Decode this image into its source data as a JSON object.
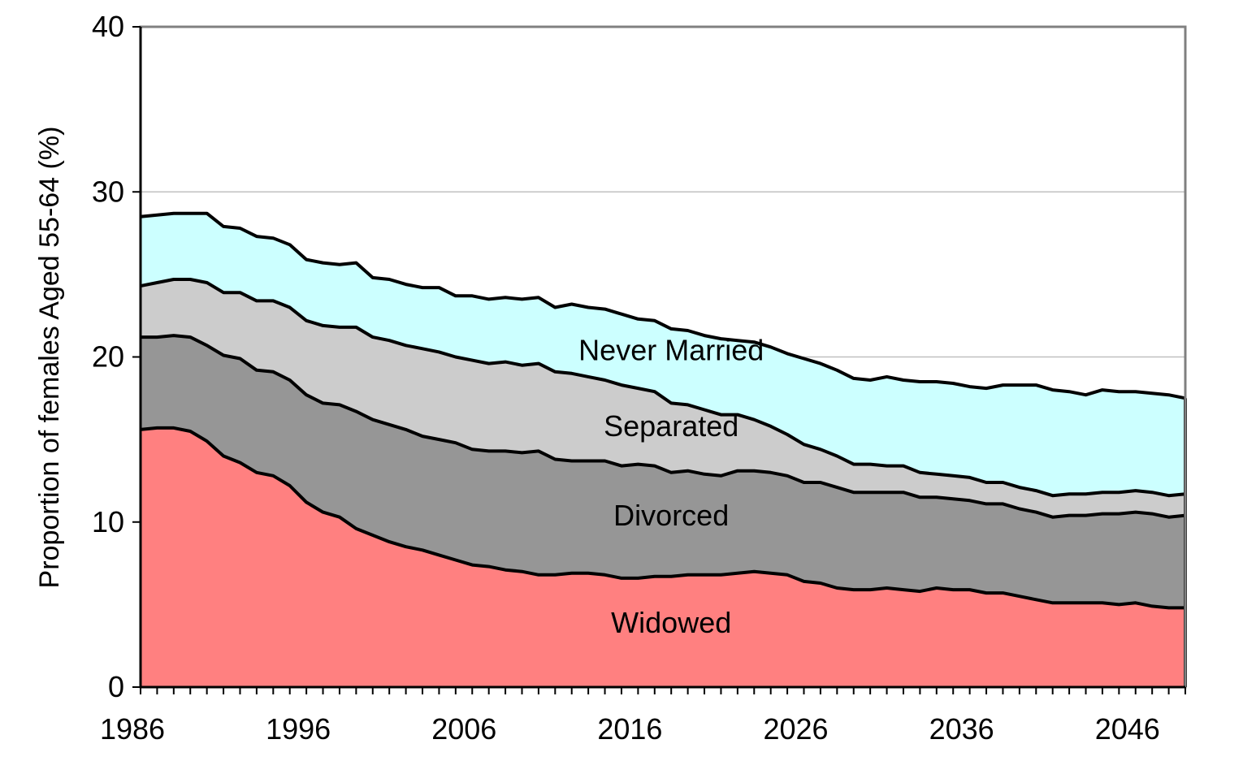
{
  "chart_data": {
    "type": "area",
    "stacked": true,
    "title": "",
    "xlabel": "",
    "ylabel": "Proportion of females Aged 55-64 (%)",
    "xlim": [
      1986,
      2049
    ],
    "ylim": [
      0,
      40
    ],
    "x_ticks": [
      1986,
      1996,
      2006,
      2016,
      2026,
      2036,
      2046
    ],
    "y_ticks": [
      0,
      10,
      20,
      30,
      40
    ],
    "grid": "horizontal",
    "legend": "none (labels placed inside areas)",
    "series": [
      {
        "name": "Widowed",
        "color": "#ff8080",
        "label_at": [
          2018,
          3.3
        ],
        "values": [
          [
            1986,
            15.6
          ],
          [
            1987,
            15.7
          ],
          [
            1988,
            15.7
          ],
          [
            1989,
            15.5
          ],
          [
            1990,
            14.9
          ],
          [
            1991,
            14.0
          ],
          [
            1992,
            13.6
          ],
          [
            1993,
            13.0
          ],
          [
            1994,
            12.8
          ],
          [
            1995,
            12.2
          ],
          [
            1996,
            11.2
          ],
          [
            1997,
            10.6
          ],
          [
            1998,
            10.3
          ],
          [
            1999,
            9.6
          ],
          [
            2000,
            9.2
          ],
          [
            2001,
            8.8
          ],
          [
            2002,
            8.5
          ],
          [
            2003,
            8.3
          ],
          [
            2004,
            8.0
          ],
          [
            2005,
            7.7
          ],
          [
            2006,
            7.4
          ],
          [
            2007,
            7.3
          ],
          [
            2008,
            7.1
          ],
          [
            2009,
            7.0
          ],
          [
            2010,
            6.8
          ],
          [
            2011,
            6.8
          ],
          [
            2012,
            6.9
          ],
          [
            2013,
            6.9
          ],
          [
            2014,
            6.8
          ],
          [
            2015,
            6.6
          ],
          [
            2016,
            6.6
          ],
          [
            2017,
            6.7
          ],
          [
            2018,
            6.7
          ],
          [
            2019,
            6.8
          ],
          [
            2020,
            6.8
          ],
          [
            2021,
            6.8
          ],
          [
            2022,
            6.9
          ],
          [
            2023,
            7.0
          ],
          [
            2024,
            6.9
          ],
          [
            2025,
            6.8
          ],
          [
            2026,
            6.4
          ],
          [
            2027,
            6.3
          ],
          [
            2028,
            6.0
          ],
          [
            2029,
            5.9
          ],
          [
            2030,
            5.9
          ],
          [
            2031,
            6.0
          ],
          [
            2032,
            5.9
          ],
          [
            2033,
            5.8
          ],
          [
            2034,
            6.0
          ],
          [
            2035,
            5.9
          ],
          [
            2036,
            5.9
          ],
          [
            2037,
            5.7
          ],
          [
            2038,
            5.7
          ],
          [
            2039,
            5.5
          ],
          [
            2040,
            5.3
          ],
          [
            2041,
            5.1
          ],
          [
            2042,
            5.1
          ],
          [
            2043,
            5.1
          ],
          [
            2044,
            5.1
          ],
          [
            2045,
            5.0
          ],
          [
            2046,
            5.1
          ],
          [
            2047,
            4.9
          ],
          [
            2048,
            4.8
          ],
          [
            2049,
            4.8
          ]
        ]
      },
      {
        "name": "Divorced",
        "color": "#969696",
        "label_at": [
          2018,
          9.8
        ],
        "values": [
          [
            1986,
            21.2
          ],
          [
            1987,
            21.2
          ],
          [
            1988,
            21.3
          ],
          [
            1989,
            21.2
          ],
          [
            1990,
            20.7
          ],
          [
            1991,
            20.1
          ],
          [
            1992,
            19.9
          ],
          [
            1993,
            19.2
          ],
          [
            1994,
            19.1
          ],
          [
            1995,
            18.6
          ],
          [
            1996,
            17.7
          ],
          [
            1997,
            17.2
          ],
          [
            1998,
            17.1
          ],
          [
            1999,
            16.7
          ],
          [
            2000,
            16.2
          ],
          [
            2001,
            15.9
          ],
          [
            2002,
            15.6
          ],
          [
            2003,
            15.2
          ],
          [
            2004,
            15.0
          ],
          [
            2005,
            14.8
          ],
          [
            2006,
            14.4
          ],
          [
            2007,
            14.3
          ],
          [
            2008,
            14.3
          ],
          [
            2009,
            14.2
          ],
          [
            2010,
            14.3
          ],
          [
            2011,
            13.8
          ],
          [
            2012,
            13.7
          ],
          [
            2013,
            13.7
          ],
          [
            2014,
            13.7
          ],
          [
            2015,
            13.4
          ],
          [
            2016,
            13.5
          ],
          [
            2017,
            13.4
          ],
          [
            2018,
            13.0
          ],
          [
            2019,
            13.1
          ],
          [
            2020,
            12.9
          ],
          [
            2021,
            12.8
          ],
          [
            2022,
            13.1
          ],
          [
            2023,
            13.1
          ],
          [
            2024,
            13.0
          ],
          [
            2025,
            12.8
          ],
          [
            2026,
            12.4
          ],
          [
            2027,
            12.4
          ],
          [
            2028,
            12.1
          ],
          [
            2029,
            11.8
          ],
          [
            2030,
            11.8
          ],
          [
            2031,
            11.8
          ],
          [
            2032,
            11.8
          ],
          [
            2033,
            11.5
          ],
          [
            2034,
            11.5
          ],
          [
            2035,
            11.4
          ],
          [
            2036,
            11.3
          ],
          [
            2037,
            11.1
          ],
          [
            2038,
            11.1
          ],
          [
            2039,
            10.8
          ],
          [
            2040,
            10.6
          ],
          [
            2041,
            10.3
          ],
          [
            2042,
            10.4
          ],
          [
            2043,
            10.4
          ],
          [
            2044,
            10.5
          ],
          [
            2045,
            10.5
          ],
          [
            2046,
            10.6
          ],
          [
            2047,
            10.5
          ],
          [
            2048,
            10.3
          ],
          [
            2049,
            10.4
          ]
        ]
      },
      {
        "name": "Separated",
        "color": "#cccccc",
        "label_at": [
          2018,
          15.2
        ],
        "values": [
          [
            1986,
            24.3
          ],
          [
            1987,
            24.5
          ],
          [
            1988,
            24.7
          ],
          [
            1989,
            24.7
          ],
          [
            1990,
            24.5
          ],
          [
            1991,
            23.9
          ],
          [
            1992,
            23.9
          ],
          [
            1993,
            23.4
          ],
          [
            1994,
            23.4
          ],
          [
            1995,
            23.0
          ],
          [
            1996,
            22.2
          ],
          [
            1997,
            21.9
          ],
          [
            1998,
            21.8
          ],
          [
            1999,
            21.8
          ],
          [
            2000,
            21.2
          ],
          [
            2001,
            21.0
          ],
          [
            2002,
            20.7
          ],
          [
            2003,
            20.5
          ],
          [
            2004,
            20.3
          ],
          [
            2005,
            20.0
          ],
          [
            2006,
            19.8
          ],
          [
            2007,
            19.6
          ],
          [
            2008,
            19.7
          ],
          [
            2009,
            19.5
          ],
          [
            2010,
            19.6
          ],
          [
            2011,
            19.1
          ],
          [
            2012,
            19.0
          ],
          [
            2013,
            18.8
          ],
          [
            2014,
            18.6
          ],
          [
            2015,
            18.3
          ],
          [
            2016,
            18.1
          ],
          [
            2017,
            17.9
          ],
          [
            2018,
            17.2
          ],
          [
            2019,
            17.1
          ],
          [
            2020,
            16.8
          ],
          [
            2021,
            16.5
          ],
          [
            2022,
            16.5
          ],
          [
            2023,
            16.2
          ],
          [
            2024,
            15.8
          ],
          [
            2025,
            15.3
          ],
          [
            2026,
            14.7
          ],
          [
            2027,
            14.4
          ],
          [
            2028,
            14.0
          ],
          [
            2029,
            13.5
          ],
          [
            2030,
            13.5
          ],
          [
            2031,
            13.4
          ],
          [
            2032,
            13.4
          ],
          [
            2033,
            13.0
          ],
          [
            2034,
            12.9
          ],
          [
            2035,
            12.8
          ],
          [
            2036,
            12.7
          ],
          [
            2037,
            12.4
          ],
          [
            2038,
            12.4
          ],
          [
            2039,
            12.1
          ],
          [
            2040,
            11.9
          ],
          [
            2041,
            11.6
          ],
          [
            2042,
            11.7
          ],
          [
            2043,
            11.7
          ],
          [
            2044,
            11.8
          ],
          [
            2045,
            11.8
          ],
          [
            2046,
            11.9
          ],
          [
            2047,
            11.8
          ],
          [
            2048,
            11.6
          ],
          [
            2049,
            11.7
          ]
        ]
      },
      {
        "name": "Never Married",
        "color": "#ccffff",
        "label_at": [
          2018,
          19.8
        ],
        "values": [
          [
            1986,
            28.5
          ],
          [
            1987,
            28.6
          ],
          [
            1988,
            28.7
          ],
          [
            1989,
            28.7
          ],
          [
            1990,
            28.7
          ],
          [
            1991,
            27.9
          ],
          [
            1992,
            27.8
          ],
          [
            1993,
            27.3
          ],
          [
            1994,
            27.2
          ],
          [
            1995,
            26.8
          ],
          [
            1996,
            25.9
          ],
          [
            1997,
            25.7
          ],
          [
            1998,
            25.6
          ],
          [
            1999,
            25.7
          ],
          [
            2000,
            24.8
          ],
          [
            2001,
            24.7
          ],
          [
            2002,
            24.4
          ],
          [
            2003,
            24.2
          ],
          [
            2004,
            24.2
          ],
          [
            2005,
            23.7
          ],
          [
            2006,
            23.7
          ],
          [
            2007,
            23.5
          ],
          [
            2008,
            23.6
          ],
          [
            2009,
            23.5
          ],
          [
            2010,
            23.6
          ],
          [
            2011,
            23.0
          ],
          [
            2012,
            23.2
          ],
          [
            2013,
            23.0
          ],
          [
            2014,
            22.9
          ],
          [
            2015,
            22.6
          ],
          [
            2016,
            22.3
          ],
          [
            2017,
            22.2
          ],
          [
            2018,
            21.7
          ],
          [
            2019,
            21.6
          ],
          [
            2020,
            21.3
          ],
          [
            2021,
            21.1
          ],
          [
            2022,
            21.0
          ],
          [
            2023,
            20.9
          ],
          [
            2024,
            20.6
          ],
          [
            2025,
            20.2
          ],
          [
            2026,
            19.9
          ],
          [
            2027,
            19.6
          ],
          [
            2028,
            19.2
          ],
          [
            2029,
            18.7
          ],
          [
            2030,
            18.6
          ],
          [
            2031,
            18.8
          ],
          [
            2032,
            18.6
          ],
          [
            2033,
            18.5
          ],
          [
            2034,
            18.5
          ],
          [
            2035,
            18.4
          ],
          [
            2036,
            18.2
          ],
          [
            2037,
            18.1
          ],
          [
            2038,
            18.3
          ],
          [
            2039,
            18.3
          ],
          [
            2040,
            18.3
          ],
          [
            2041,
            18.0
          ],
          [
            2042,
            17.9
          ],
          [
            2043,
            17.7
          ],
          [
            2044,
            18.0
          ],
          [
            2045,
            17.9
          ],
          [
            2046,
            17.9
          ],
          [
            2047,
            17.8
          ],
          [
            2048,
            17.7
          ],
          [
            2049,
            17.5
          ]
        ]
      }
    ]
  }
}
